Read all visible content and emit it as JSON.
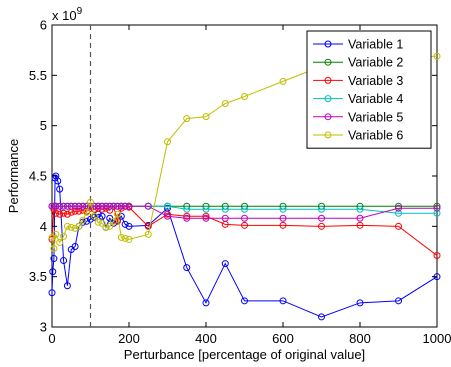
{
  "chart_data": {
    "type": "line",
    "title": "",
    "xlabel": "Perturbance [percentage of original value]",
    "ylabel": "Performance",
    "exponent_label": "x 10",
    "exponent_power": "9",
    "xlim": [
      0,
      1000
    ],
    "ylim": [
      3,
      6
    ],
    "x_ticks": [
      0,
      200,
      400,
      600,
      800,
      1000
    ],
    "x_tick_labels": [
      "0",
      "200",
      "400",
      "600",
      "800",
      "1000"
    ],
    "y_ticks": [
      3,
      3.5,
      4,
      4.5,
      5,
      5.5,
      6
    ],
    "y_tick_labels": [
      "3",
      "3.5",
      "4",
      "4.5",
      "5",
      "5.5",
      "6"
    ],
    "reference_line_x": 100,
    "grid": false,
    "legend_position": "top-right",
    "series": [
      {
        "name": "Variable 1",
        "color": "#0000ff",
        "points": [
          [
            0,
            3.34
          ],
          [
            2,
            3.55
          ],
          [
            5,
            3.68
          ],
          [
            8,
            4.48
          ],
          [
            10,
            4.5
          ],
          [
            15,
            4.45
          ],
          [
            20,
            4.37
          ],
          [
            30,
            3.66
          ],
          [
            40,
            3.41
          ],
          [
            50,
            3.77
          ],
          [
            60,
            3.8
          ],
          [
            70,
            4.0
          ],
          [
            80,
            4.04
          ],
          [
            90,
            4.05
          ],
          [
            100,
            4.07
          ],
          [
            110,
            4.09
          ],
          [
            120,
            4.12
          ],
          [
            130,
            4.1
          ],
          [
            140,
            3.99
          ],
          [
            150,
            4.08
          ],
          [
            160,
            4.03
          ],
          [
            170,
            4.06
          ],
          [
            180,
            4.1
          ],
          [
            190,
            4.02
          ],
          [
            200,
            4.0
          ],
          [
            250,
            4.01
          ],
          [
            300,
            4.18
          ],
          [
            350,
            3.59
          ],
          [
            400,
            3.24
          ],
          [
            450,
            3.63
          ],
          [
            500,
            3.26
          ],
          [
            600,
            3.26
          ],
          [
            700,
            3.1
          ],
          [
            800,
            3.24
          ],
          [
            900,
            3.26
          ],
          [
            1000,
            3.5
          ]
        ]
      },
      {
        "name": "Variable 2",
        "color": "#008000",
        "points": [
          [
            0,
            4.2
          ],
          [
            5,
            4.2
          ],
          [
            10,
            4.2
          ],
          [
            20,
            4.2
          ],
          [
            30,
            4.2
          ],
          [
            40,
            4.2
          ],
          [
            50,
            4.2
          ],
          [
            60,
            4.2
          ],
          [
            70,
            4.2
          ],
          [
            80,
            4.2
          ],
          [
            90,
            4.2
          ],
          [
            100,
            4.2
          ],
          [
            110,
            4.2
          ],
          [
            120,
            4.2
          ],
          [
            130,
            4.2
          ],
          [
            140,
            4.2
          ],
          [
            150,
            4.2
          ],
          [
            160,
            4.2
          ],
          [
            170,
            4.2
          ],
          [
            180,
            4.2
          ],
          [
            190,
            4.2
          ],
          [
            200,
            4.2
          ],
          [
            250,
            4.2
          ],
          [
            300,
            4.2
          ],
          [
            350,
            4.2
          ],
          [
            400,
            4.2
          ],
          [
            450,
            4.2
          ],
          [
            500,
            4.2
          ],
          [
            600,
            4.2
          ],
          [
            700,
            4.2
          ],
          [
            800,
            4.2
          ],
          [
            900,
            4.2
          ],
          [
            1000,
            4.2
          ]
        ]
      },
      {
        "name": "Variable 3",
        "color": "#ff0000",
        "points": [
          [
            0,
            3.87
          ],
          [
            5,
            4.17
          ],
          [
            10,
            4.13
          ],
          [
            20,
            4.12
          ],
          [
            30,
            4.13
          ],
          [
            40,
            4.12
          ],
          [
            50,
            4.14
          ],
          [
            60,
            4.15
          ],
          [
            70,
            4.15
          ],
          [
            80,
            4.16
          ],
          [
            90,
            4.15
          ],
          [
            100,
            4.18
          ],
          [
            110,
            4.17
          ],
          [
            120,
            4.18
          ],
          [
            130,
            4.17
          ],
          [
            140,
            4.18
          ],
          [
            150,
            4.16
          ],
          [
            160,
            4.2
          ],
          [
            170,
            4.05
          ],
          [
            180,
            4.18
          ],
          [
            190,
            4.2
          ],
          [
            200,
            4.19
          ],
          [
            250,
            4.0
          ],
          [
            300,
            4.12
          ],
          [
            350,
            4.1
          ],
          [
            400,
            4.1
          ],
          [
            450,
            4.02
          ],
          [
            500,
            4.01
          ],
          [
            600,
            4.01
          ],
          [
            700,
            4.0
          ],
          [
            800,
            4.01
          ],
          [
            900,
            4.0
          ],
          [
            1000,
            3.71
          ]
        ]
      },
      {
        "name": "Variable 4",
        "color": "#00bfbf",
        "points": [
          [
            0,
            4.2
          ],
          [
            5,
            4.2
          ],
          [
            10,
            4.2
          ],
          [
            20,
            4.2
          ],
          [
            30,
            4.2
          ],
          [
            40,
            4.2
          ],
          [
            50,
            4.2
          ],
          [
            60,
            4.2
          ],
          [
            70,
            4.2
          ],
          [
            80,
            4.2
          ],
          [
            90,
            4.2
          ],
          [
            100,
            4.2
          ],
          [
            110,
            4.2
          ],
          [
            120,
            4.2
          ],
          [
            130,
            4.2
          ],
          [
            140,
            4.2
          ],
          [
            150,
            4.2
          ],
          [
            160,
            4.2
          ],
          [
            170,
            4.2
          ],
          [
            180,
            4.2
          ],
          [
            190,
            4.2
          ],
          [
            200,
            4.2
          ],
          [
            250,
            4.2
          ],
          [
            300,
            4.2
          ],
          [
            350,
            4.17
          ],
          [
            400,
            4.17
          ],
          [
            450,
            4.17
          ],
          [
            500,
            4.17
          ],
          [
            600,
            4.17
          ],
          [
            700,
            4.17
          ],
          [
            800,
            4.17
          ],
          [
            900,
            4.13
          ],
          [
            1000,
            4.13
          ]
        ]
      },
      {
        "name": "Variable 5",
        "color": "#bf00bf",
        "points": [
          [
            0,
            4.2
          ],
          [
            5,
            4.2
          ],
          [
            10,
            4.2
          ],
          [
            20,
            4.2
          ],
          [
            30,
            4.2
          ],
          [
            40,
            4.2
          ],
          [
            50,
            4.2
          ],
          [
            60,
            4.2
          ],
          [
            70,
            4.2
          ],
          [
            80,
            4.2
          ],
          [
            90,
            4.2
          ],
          [
            100,
            4.2
          ],
          [
            110,
            4.2
          ],
          [
            120,
            4.2
          ],
          [
            130,
            4.2
          ],
          [
            140,
            4.2
          ],
          [
            150,
            4.2
          ],
          [
            160,
            4.2
          ],
          [
            170,
            4.2
          ],
          [
            180,
            4.2
          ],
          [
            190,
            4.2
          ],
          [
            200,
            4.2
          ],
          [
            250,
            4.2
          ],
          [
            300,
            4.1
          ],
          [
            350,
            4.08
          ],
          [
            400,
            4.08
          ],
          [
            450,
            4.08
          ],
          [
            500,
            4.08
          ],
          [
            600,
            4.08
          ],
          [
            700,
            4.08
          ],
          [
            800,
            4.08
          ],
          [
            900,
            4.18
          ],
          [
            1000,
            4.18
          ]
        ]
      },
      {
        "name": "Variable 6",
        "color": "#bfbf00",
        "points": [
          [
            0,
            3.89
          ],
          [
            5,
            3.78
          ],
          [
            10,
            3.92
          ],
          [
            20,
            3.84
          ],
          [
            30,
            3.9
          ],
          [
            40,
            4.0
          ],
          [
            50,
            3.99
          ],
          [
            60,
            3.98
          ],
          [
            70,
            4.0
          ],
          [
            80,
            4.06
          ],
          [
            90,
            4.14
          ],
          [
            100,
            4.24
          ],
          [
            110,
            4.1
          ],
          [
            120,
            4.04
          ],
          [
            130,
            4.03
          ],
          [
            140,
            3.99
          ],
          [
            150,
            4.0
          ],
          [
            160,
            4.05
          ],
          [
            170,
            4.12
          ],
          [
            180,
            3.89
          ],
          [
            190,
            3.88
          ],
          [
            200,
            3.87
          ],
          [
            250,
            3.92
          ],
          [
            300,
            4.84
          ],
          [
            350,
            5.07
          ],
          [
            400,
            5.09
          ],
          [
            450,
            5.22
          ],
          [
            500,
            5.29
          ],
          [
            600,
            5.44
          ],
          [
            700,
            5.59
          ],
          [
            800,
            5.64
          ],
          [
            900,
            5.68
          ],
          [
            1000,
            5.69
          ]
        ]
      }
    ]
  }
}
